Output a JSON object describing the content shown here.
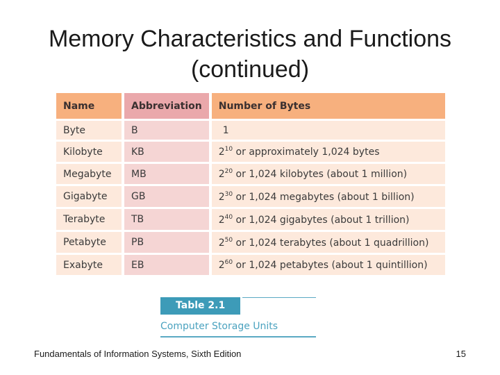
{
  "slide": {
    "title_line1": "Memory Characteristics and Functions",
    "title_line2": "(continued)"
  },
  "table": {
    "headers": [
      "Name",
      "Abbreviation",
      "Number of Bytes"
    ],
    "rows": [
      {
        "name": "Byte",
        "abbr": "B",
        "base": "1",
        "exp": "",
        "rest": ""
      },
      {
        "name": "Kilobyte",
        "abbr": "KB",
        "base": "2",
        "exp": "10",
        "rest": " or approximately 1,024 bytes"
      },
      {
        "name": "Megabyte",
        "abbr": "MB",
        "base": "2",
        "exp": "20",
        "rest": " or 1,024 kilobytes (about 1 million)"
      },
      {
        "name": "Gigabyte",
        "abbr": "GB",
        "base": "2",
        "exp": "30",
        "rest": " or 1,024 megabytes (about 1 billion)"
      },
      {
        "name": "Terabyte",
        "abbr": "TB",
        "base": "2",
        "exp": "40",
        "rest": " or 1,024 gigabytes (about 1 trillion)"
      },
      {
        "name": "Petabyte",
        "abbr": "PB",
        "base": "2",
        "exp": "50",
        "rest": " or 1,024 terabytes (about 1 quadrillion)"
      },
      {
        "name": "Exabyte",
        "abbr": "EB",
        "base": "2",
        "exp": "60",
        "rest": " or 1,024 petabytes (about 1 quintillion)"
      }
    ]
  },
  "caption": {
    "label": "Table 2.1",
    "text": "Computer Storage Units"
  },
  "footer": {
    "book": "Fundamentals of Information Systems, Sixth Edition",
    "page": "15"
  },
  "colors": {
    "header_orange": "#f7b07e",
    "header_pink": "#eaa8ab",
    "cell_peach": "#fde9dc",
    "cell_pink": "#f5d5d4",
    "caption_blue": "#3d9bb8"
  }
}
